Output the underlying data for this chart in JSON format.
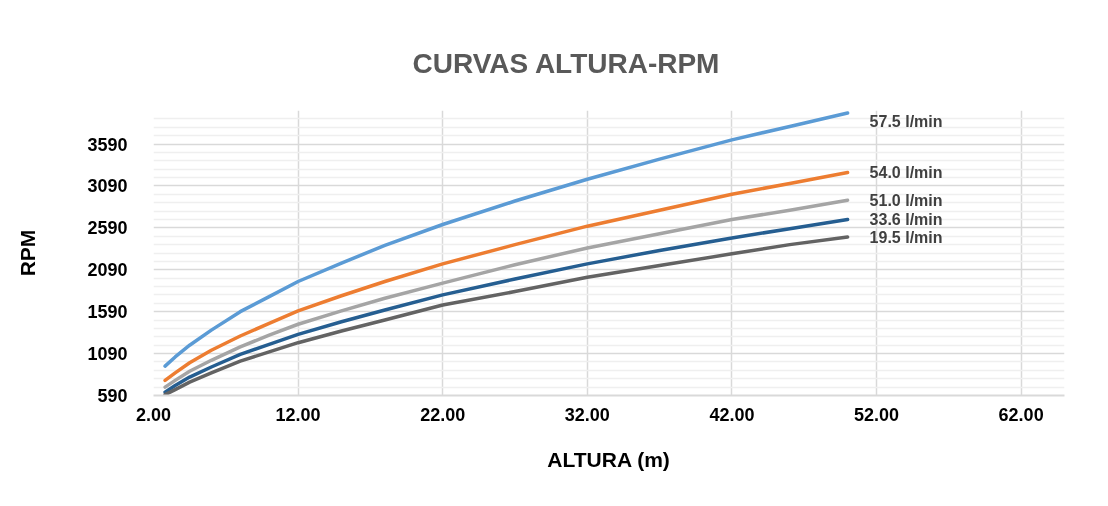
{
  "chart_data": {
    "type": "line",
    "title": "CURVAS ALTURA-RPM",
    "xlabel": "ALTURA (m)",
    "ylabel": "RPM",
    "x": [
      2.8,
      3.5,
      4.5,
      6,
      8,
      10,
      12,
      15,
      18,
      22,
      27,
      32,
      37,
      42,
      46,
      50
    ],
    "series": [
      {
        "name": "57.5 l/min",
        "color": "#5b9bd5",
        "values": [
          940,
          1050,
          1190,
          1370,
          1590,
          1770,
          1950,
          2170,
          2380,
          2630,
          2910,
          3170,
          3410,
          3640,
          3800,
          3960
        ]
      },
      {
        "name": "54.0 l/min",
        "color": "#ed7d31",
        "values": [
          770,
          860,
          980,
          1130,
          1300,
          1450,
          1600,
          1780,
          1950,
          2160,
          2390,
          2610,
          2800,
          2990,
          3120,
          3250
        ]
      },
      {
        "name": "51.0 l/min",
        "color": "#a5a5a5",
        "values": [
          690,
          770,
          880,
          1010,
          1170,
          1310,
          1440,
          1600,
          1750,
          1930,
          2150,
          2350,
          2520,
          2690,
          2800,
          2920
        ]
      },
      {
        "name": "33.6 l/min",
        "color": "#255e91",
        "values": [
          630,
          710,
          810,
          930,
          1080,
          1200,
          1320,
          1470,
          1610,
          1790,
          1980,
          2160,
          2320,
          2470,
          2580,
          2690
        ]
      },
      {
        "name": "19.5 l/min",
        "color": "#636363",
        "values": [
          600,
          660,
          750,
          860,
          1000,
          1110,
          1220,
          1360,
          1490,
          1670,
          1830,
          2000,
          2140,
          2280,
          2390,
          2480
        ]
      }
    ],
    "xlim": [
      2,
      65
    ],
    "xticks": [
      {
        "value": 2,
        "label": "2.00"
      },
      {
        "value": 12,
        "label": "12.00"
      },
      {
        "value": 22,
        "label": "22.00"
      },
      {
        "value": 32,
        "label": "32.00"
      },
      {
        "value": 42,
        "label": "42.00"
      },
      {
        "value": 52,
        "label": "52.00"
      },
      {
        "value": 62,
        "label": "62.00"
      }
    ],
    "ylim": [
      590,
      3990
    ],
    "yticks": [
      590,
      {
        "value": 690,
        "label": null
      },
      {
        "value": 790,
        "label": null
      },
      {
        "value": 890,
        "label": null
      },
      {
        "value": 990,
        "label": null
      },
      1090,
      {
        "value": 1190,
        "label": null
      },
      {
        "value": 1290,
        "label": null
      },
      {
        "value": 1390,
        "label": null
      },
      {
        "value": 1490,
        "label": null
      },
      1590,
      {
        "value": 1690,
        "label": null
      },
      {
        "value": 1790,
        "label": null
      },
      {
        "value": 1890,
        "label": null
      },
      {
        "value": 1990,
        "label": null
      },
      2090,
      {
        "value": 2190,
        "label": null
      },
      {
        "value": 2290,
        "label": null
      },
      {
        "value": 2390,
        "label": null
      },
      {
        "value": 2490,
        "label": null
      },
      2590,
      {
        "value": 2690,
        "label": null
      },
      {
        "value": 2790,
        "label": null
      },
      {
        "value": 2890,
        "label": null
      },
      {
        "value": 2990,
        "label": null
      },
      3090,
      {
        "value": 3190,
        "label": null
      },
      {
        "value": 3290,
        "label": null
      },
      {
        "value": 3390,
        "label": null
      },
      {
        "value": 3490,
        "label": null
      },
      3590,
      {
        "value": 3690,
        "label": null
      },
      {
        "value": 3790,
        "label": null
      },
      {
        "value": 3890,
        "label": null
      }
    ],
    "grid": true,
    "line_style": "solid",
    "marker": "none"
  }
}
